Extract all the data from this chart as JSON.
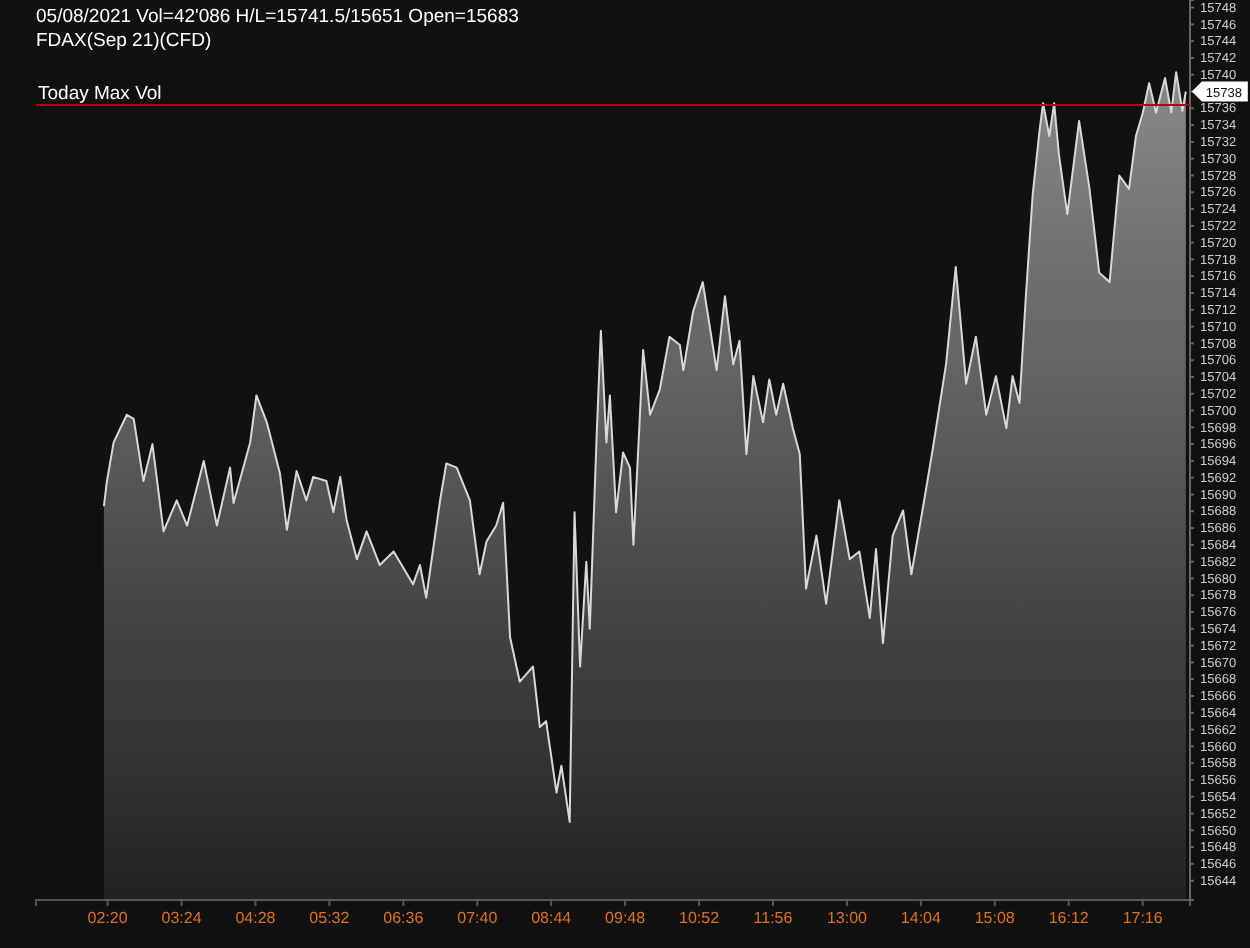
{
  "chart_data": {
    "type": "area",
    "title": "05/08/2021 Vol=42'086 H/L=15741.5/15651 Open=15683",
    "subtitle": "FDAX(Sep 21)(CFD)",
    "x": [
      2.28,
      2.32,
      2.42,
      2.61,
      2.71,
      2.85,
      2.98,
      3.14,
      3.33,
      3.48,
      3.72,
      3.91,
      4.1,
      4.15,
      4.39,
      4.48,
      4.63,
      4.82,
      4.92,
      5.06,
      5.2,
      5.3,
      5.49,
      5.59,
      5.69,
      5.78,
      5.93,
      6.07,
      6.26,
      6.46,
      6.74,
      6.84,
      6.93,
      7.13,
      7.22,
      7.37,
      7.56,
      7.7,
      7.8,
      7.94,
      8.04,
      8.14,
      8.28,
      8.47,
      8.57,
      8.66,
      8.81,
      8.88,
      9.0,
      9.07,
      9.15,
      9.24,
      9.29,
      9.39,
      9.45,
      9.53,
      9.58,
      9.67,
      9.77,
      9.87,
      9.92,
      10.06,
      10.16,
      10.3,
      10.44,
      10.59,
      10.64,
      10.78,
      10.92,
      11.12,
      11.24,
      11.36,
      11.45,
      11.55,
      11.65,
      11.79,
      11.88,
      11.98,
      12.08,
      12.22,
      12.32,
      12.41,
      12.56,
      12.7,
      12.89,
      13.04,
      13.18,
      13.33,
      13.42,
      13.52,
      13.66,
      13.81,
      13.93,
      14.1,
      14.24,
      14.43,
      14.57,
      14.72,
      14.86,
      15.01,
      15.15,
      15.3,
      15.39,
      15.49,
      15.58,
      15.68,
      15.78,
      15.83,
      15.92,
      15.99,
      16.06,
      16.18,
      16.35,
      16.5,
      16.64,
      16.79,
      16.93,
      17.07,
      17.17,
      17.27,
      17.36,
      17.46,
      17.59,
      17.68,
      17.75,
      17.84,
      17.89
    ],
    "series": [
      {
        "color": "#d8d8d8",
        "values": [
          15688.6,
          15691.4,
          15696.2,
          15699.5,
          15699.0,
          15691.6,
          15696.0,
          15685.6,
          15689.3,
          15686.3,
          15694.0,
          15686.3,
          15693.2,
          15689.0,
          15696.2,
          15701.8,
          15698.6,
          15692.5,
          15685.8,
          15692.8,
          15689.3,
          15692.1,
          15691.6,
          15687.9,
          15692.1,
          15687.0,
          15682.3,
          15685.6,
          15681.6,
          15683.2,
          15679.3,
          15681.6,
          15677.7,
          15689.3,
          15693.7,
          15693.2,
          15689.3,
          15680.5,
          15684.4,
          15686.3,
          15689.0,
          15673.0,
          15667.7,
          15669.5,
          15662.3,
          15663.0,
          15654.5,
          15657.7,
          15651.0,
          15687.9,
          15669.5,
          15682.0,
          15674.0,
          15697.2,
          15709.5,
          15696.2,
          15701.8,
          15687.9,
          15695.0,
          15693.2,
          15684.0,
          15707.2,
          15699.5,
          15702.5,
          15708.8,
          15707.8,
          15704.8,
          15711.8,
          15715.3,
          15704.8,
          15713.6,
          15705.5,
          15708.3,
          15694.8,
          15704.1,
          15698.6,
          15703.7,
          15699.5,
          15703.2,
          15697.9,
          15694.8,
          15678.8,
          15685.1,
          15677.0,
          15689.3,
          15682.3,
          15683.2,
          15675.3,
          15683.5,
          15672.3,
          15685.1,
          15688.1,
          15680.5,
          15688.6,
          15695.5,
          15705.5,
          15717.1,
          15703.2,
          15708.8,
          15699.5,
          15704.1,
          15697.9,
          15704.1,
          15700.9,
          15713.4,
          15725.7,
          15733.4,
          15736.6,
          15732.7,
          15736.6,
          15730.4,
          15723.4,
          15734.5,
          15726.4,
          15716.4,
          15715.3,
          15728.0,
          15726.4,
          15732.7,
          15735.5,
          15739.0,
          15735.5,
          15739.6,
          15735.5,
          15740.3,
          15735.7,
          15738.0
        ]
      }
    ],
    "xlim": [
      1.3,
      17.95
    ],
    "xticks": [
      {
        "value": 2.333,
        "label": "02:20"
      },
      {
        "value": 3.4,
        "label": "03:24"
      },
      {
        "value": 4.467,
        "label": "04:28"
      },
      {
        "value": 5.533,
        "label": "05:32"
      },
      {
        "value": 6.6,
        "label": "06:36"
      },
      {
        "value": 7.667,
        "label": "07:40"
      },
      {
        "value": 8.733,
        "label": "08:44"
      },
      {
        "value": 9.8,
        "label": "09:48"
      },
      {
        "value": 10.867,
        "label": "10:52"
      },
      {
        "value": 11.933,
        "label": "11:56"
      },
      {
        "value": 13,
        "label": "13:00"
      },
      {
        "value": 14.067,
        "label": "14:04"
      },
      {
        "value": 15.133,
        "label": "15:08"
      },
      {
        "value": 16.2,
        "label": "16:12"
      },
      {
        "value": 17.267,
        "label": "17:16"
      }
    ],
    "ylim": [
      15641.7,
      15748.9
    ],
    "yticks": [
      15644,
      15646,
      15648,
      15650,
      15652,
      15654,
      15656,
      15658,
      15660,
      15662,
      15664,
      15666,
      15668,
      15670,
      15672,
      15674,
      15676,
      15678,
      15680,
      15682,
      15684,
      15686,
      15688,
      15690,
      15692,
      15694,
      15696,
      15698,
      15700,
      15702,
      15704,
      15706,
      15708,
      15710,
      15712,
      15714,
      15716,
      15718,
      15720,
      15722,
      15724,
      15726,
      15728,
      15730,
      15732,
      15734,
      15736,
      {
        "value": 15738,
        "label": null
      },
      15740,
      15742,
      15744,
      15746,
      15748
    ],
    "ref_lines": [
      {
        "axis": "y",
        "value": 15736.4,
        "label": "Today Max Vol",
        "color": "#c00000"
      }
    ],
    "annotations": [
      {
        "text": "15738",
        "x": 17.89,
        "y": 15738
      }
    ]
  }
}
